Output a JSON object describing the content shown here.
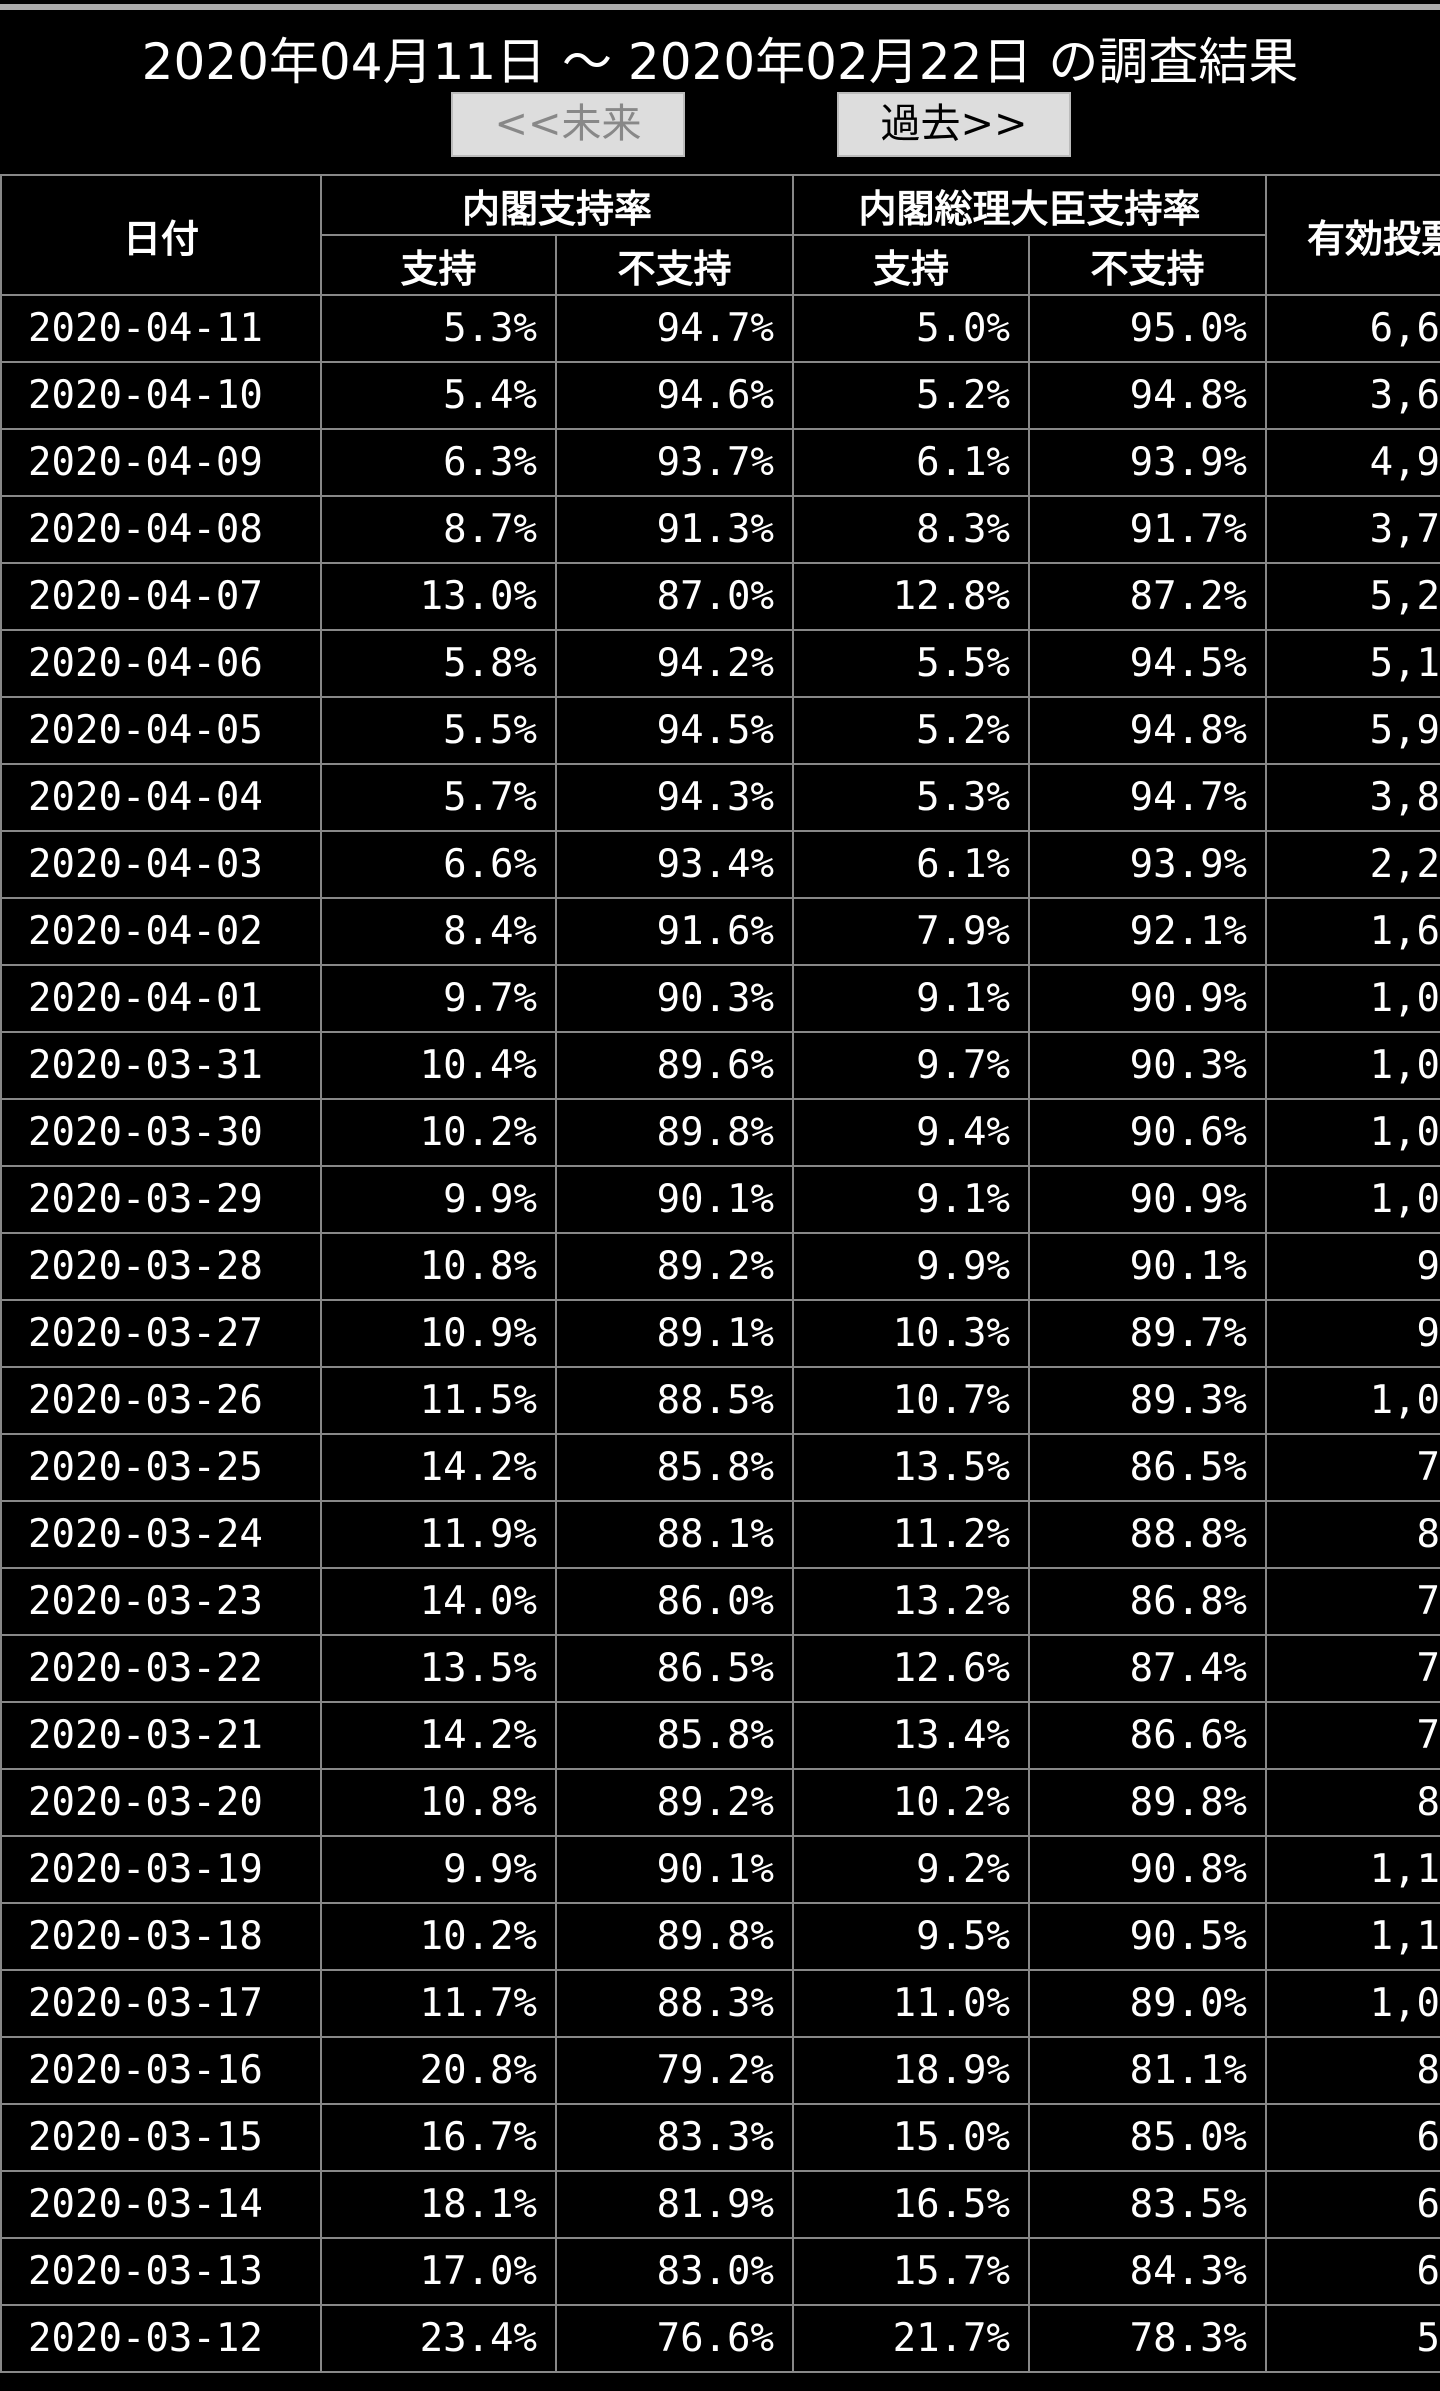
{
  "header": {
    "title": "2020年04月11日 ～ 2020年02月22日 の調査結果",
    "future_button": "<<未来",
    "past_button": "過去>>"
  },
  "table": {
    "date_header": "日付",
    "group_headers": [
      "内閣支持率",
      "内閣総理大臣支持率"
    ],
    "sub_headers": [
      "支持",
      "不支持",
      "支持",
      "不支持"
    ],
    "votes_header": "有効投票",
    "rows": [
      [
        "2020-04-11",
        "5.3%",
        "94.7%",
        "5.0%",
        "95.0%",
        "6,6"
      ],
      [
        "2020-04-10",
        "5.4%",
        "94.6%",
        "5.2%",
        "94.8%",
        "3,6"
      ],
      [
        "2020-04-09",
        "6.3%",
        "93.7%",
        "6.1%",
        "93.9%",
        "4,9"
      ],
      [
        "2020-04-08",
        "8.7%",
        "91.3%",
        "8.3%",
        "91.7%",
        "3,7"
      ],
      [
        "2020-04-07",
        "13.0%",
        "87.0%",
        "12.8%",
        "87.2%",
        "5,2"
      ],
      [
        "2020-04-06",
        "5.8%",
        "94.2%",
        "5.5%",
        "94.5%",
        "5,1"
      ],
      [
        "2020-04-05",
        "5.5%",
        "94.5%",
        "5.2%",
        "94.8%",
        "5,9"
      ],
      [
        "2020-04-04",
        "5.7%",
        "94.3%",
        "5.3%",
        "94.7%",
        "3,8"
      ],
      [
        "2020-04-03",
        "6.6%",
        "93.4%",
        "6.1%",
        "93.9%",
        "2,2"
      ],
      [
        "2020-04-02",
        "8.4%",
        "91.6%",
        "7.9%",
        "92.1%",
        "1,6"
      ],
      [
        "2020-04-01",
        "9.7%",
        "90.3%",
        "9.1%",
        "90.9%",
        "1,0"
      ],
      [
        "2020-03-31",
        "10.4%",
        "89.6%",
        "9.7%",
        "90.3%",
        "1,0"
      ],
      [
        "2020-03-30",
        "10.2%",
        "89.8%",
        "9.4%",
        "90.6%",
        "1,0"
      ],
      [
        "2020-03-29",
        "9.9%",
        "90.1%",
        "9.1%",
        "90.9%",
        "1,0"
      ],
      [
        "2020-03-28",
        "10.8%",
        "89.2%",
        "9.9%",
        "90.1%",
        "9"
      ],
      [
        "2020-03-27",
        "10.9%",
        "89.1%",
        "10.3%",
        "89.7%",
        "9"
      ],
      [
        "2020-03-26",
        "11.5%",
        "88.5%",
        "10.7%",
        "89.3%",
        "1,0"
      ],
      [
        "2020-03-25",
        "14.2%",
        "85.8%",
        "13.5%",
        "86.5%",
        "7"
      ],
      [
        "2020-03-24",
        "11.9%",
        "88.1%",
        "11.2%",
        "88.8%",
        "8"
      ],
      [
        "2020-03-23",
        "14.0%",
        "86.0%",
        "13.2%",
        "86.8%",
        "7"
      ],
      [
        "2020-03-22",
        "13.5%",
        "86.5%",
        "12.6%",
        "87.4%",
        "7"
      ],
      [
        "2020-03-21",
        "14.2%",
        "85.8%",
        "13.4%",
        "86.6%",
        "7"
      ],
      [
        "2020-03-20",
        "10.8%",
        "89.2%",
        "10.2%",
        "89.8%",
        "8"
      ],
      [
        "2020-03-19",
        "9.9%",
        "90.1%",
        "9.2%",
        "90.8%",
        "1,1"
      ],
      [
        "2020-03-18",
        "10.2%",
        "89.8%",
        "9.5%",
        "90.5%",
        "1,1"
      ],
      [
        "2020-03-17",
        "11.7%",
        "88.3%",
        "11.0%",
        "89.0%",
        "1,0"
      ],
      [
        "2020-03-16",
        "20.8%",
        "79.2%",
        "18.9%",
        "81.1%",
        "8"
      ],
      [
        "2020-03-15",
        "16.7%",
        "83.3%",
        "15.0%",
        "85.0%",
        "6"
      ],
      [
        "2020-03-14",
        "18.1%",
        "81.9%",
        "16.5%",
        "83.5%",
        "6"
      ],
      [
        "2020-03-13",
        "17.0%",
        "83.0%",
        "15.7%",
        "84.3%",
        "6"
      ],
      [
        "2020-03-12",
        "23.4%",
        "76.6%",
        "21.7%",
        "78.3%",
        "5"
      ]
    ]
  }
}
